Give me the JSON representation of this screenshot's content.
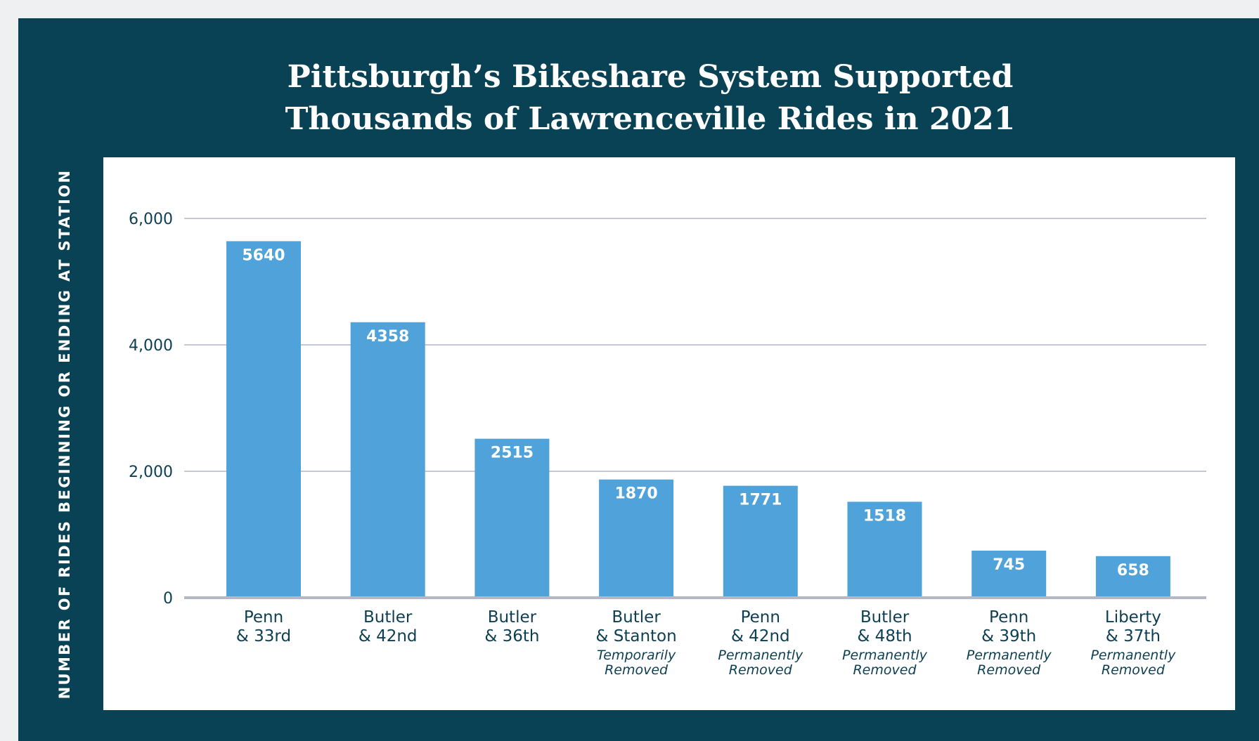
{
  "chart_data": {
    "type": "bar",
    "title": [
      "Pittsburgh’s Bikeshare System Supported",
      "Thousands of Lawrenceville Rides in 2021"
    ],
    "ylabel": "NUMBER OF RIDES BEGINNING OR ENDING AT STATION",
    "xlabel": "",
    "ylim": [
      0,
      6000
    ],
    "yticks": [
      0,
      2000,
      4000,
      6000
    ],
    "ytick_labels": [
      "0",
      "2,000",
      "4,000",
      "6,000"
    ],
    "grid": true,
    "categories": [
      {
        "lines": [
          "Penn",
          "& 33rd"
        ],
        "note": []
      },
      {
        "lines": [
          "Butler",
          "& 42nd"
        ],
        "note": []
      },
      {
        "lines": [
          "Butler",
          "& 36th"
        ],
        "note": []
      },
      {
        "lines": [
          "Butler",
          "& Stanton"
        ],
        "note": [
          "Temporarily",
          "Removed"
        ]
      },
      {
        "lines": [
          "Penn",
          "& 42nd"
        ],
        "note": [
          "Permanently",
          "Removed"
        ]
      },
      {
        "lines": [
          "Butler",
          "& 48th"
        ],
        "note": [
          "Permanently",
          "Removed"
        ]
      },
      {
        "lines": [
          "Penn",
          "& 39th"
        ],
        "note": [
          "Permanently",
          "Removed"
        ]
      },
      {
        "lines": [
          "Liberty",
          "& 37th"
        ],
        "note": [
          "Permanently",
          "Removed"
        ]
      }
    ],
    "values": [
      5640,
      4358,
      2515,
      1870,
      1771,
      1518,
      745,
      658
    ],
    "value_labels": [
      "5640",
      "4358",
      "2515",
      "1870",
      "1771",
      "1518",
      "745",
      "658"
    ],
    "bar_color": "#4fa3da",
    "background_color": "#094254",
    "panel_color": "#ffffff",
    "text_color": "#0c3f52"
  }
}
